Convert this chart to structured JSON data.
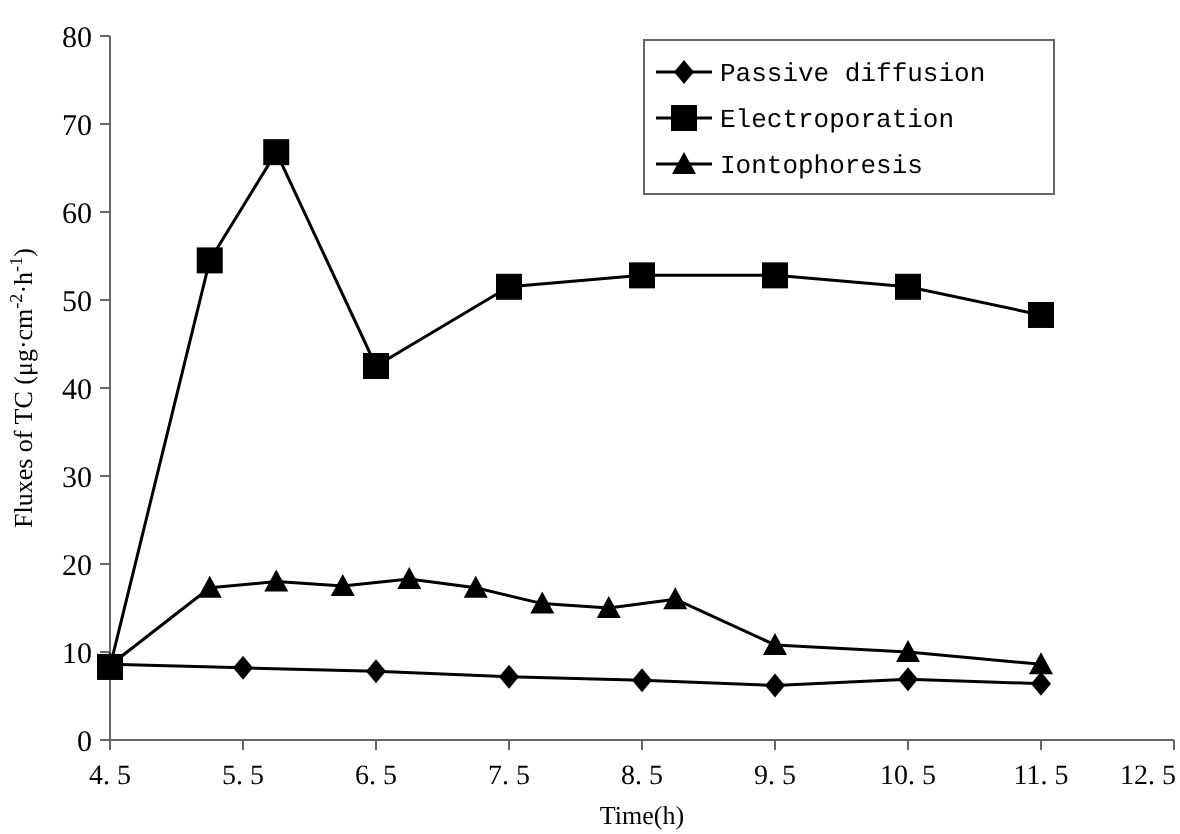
{
  "chart_data": {
    "type": "line",
    "xlabel": "Time(h)",
    "ylabel": "Fluxes of TC (μg·cm$^{-2}$·h$^{-1}$)",
    "xlim": [
      4.5,
      12.5
    ],
    "xticks": [
      4.5,
      5.5,
      6.5,
      7.5,
      8.5,
      9.5,
      10.5,
      11.5,
      12.5
    ],
    "ylim": [
      0,
      80
    ],
    "yticks": [
      0,
      10,
      20,
      30,
      40,
      50,
      60,
      70,
      80
    ],
    "grid": false,
    "legend": "top right",
    "line_style": "solid",
    "series": [
      {
        "name": "Passive diffusion",
        "color": "#000000",
        "marker": "diamond",
        "x": [
          4.5,
          5.5,
          6.5,
          7.5,
          8.5,
          9.5,
          10.5,
          11.5
        ],
        "values": [
          8.6,
          8.2,
          7.8,
          7.2,
          6.8,
          6.2,
          6.9,
          6.4
        ]
      },
      {
        "name": "Electroporation",
        "color": "#000000",
        "marker": "square",
        "x": [
          4.5,
          5.25,
          5.75,
          6.5,
          7.5,
          8.5,
          9.5,
          10.5,
          11.5
        ],
        "values": [
          8.3,
          54.5,
          66.8,
          42.5,
          51.5,
          52.8,
          52.8,
          51.5,
          48.3
        ]
      },
      {
        "name": "Iontophoresis",
        "color": "#000000",
        "marker": "triangle",
        "x": [
          4.5,
          5.25,
          5.75,
          6.25,
          6.75,
          7.25,
          7.75,
          8.25,
          8.75,
          9.5,
          10.5,
          11.5
        ],
        "values": [
          8.5,
          17.3,
          18.0,
          17.5,
          18.3,
          17.3,
          15.5,
          15.0,
          16.0,
          10.8,
          10.0,
          8.6
        ]
      }
    ]
  }
}
